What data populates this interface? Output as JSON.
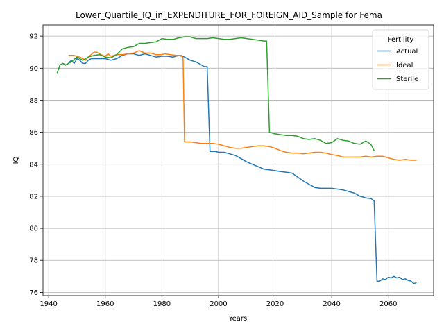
{
  "chart_data": {
    "type": "line",
    "title": "Lower_Quartile_IQ_in_EXPENDITURE_FOR_FOREIGN_AID_Sample for Fema",
    "xlabel": "Years",
    "ylabel": "IQ",
    "xlim": [
      1938,
      2076
    ],
    "ylim": [
      75.8,
      92.7
    ],
    "xticks": [
      1940,
      1960,
      1980,
      2000,
      2020,
      2040,
      2060
    ],
    "yticks": [
      76,
      78,
      80,
      82,
      84,
      86,
      88,
      90,
      92
    ],
    "grid": true,
    "legend": {
      "title": "Fertility",
      "position": "top-right"
    },
    "series": [
      {
        "name": "Actual",
        "color": "#1f77b4",
        "x": [
          1943,
          1944,
          1945,
          1946,
          1947,
          1948,
          1949,
          1950,
          1951,
          1952,
          1953,
          1954,
          1955,
          1956,
          1958,
          1960,
          1962,
          1964,
          1966,
          1968,
          1970,
          1972,
          1974,
          1976,
          1978,
          1980,
          1982,
          1984,
          1986,
          1988,
          1990,
          1992,
          1994,
          1995,
          1996,
          1997,
          1999,
          2000,
          2002,
          2004,
          2006,
          2008,
          2010,
          2012,
          2014,
          2016,
          2018,
          2020,
          2022,
          2024,
          2026,
          2028,
          2030,
          2032,
          2034,
          2036,
          2038,
          2040,
          2042,
          2044,
          2046,
          2048,
          2050,
          2052,
          2054,
          2055,
          2056,
          2057,
          2058,
          2059,
          2060,
          2061,
          2062,
          2063,
          2064,
          2065,
          2066,
          2067,
          2068,
          2069,
          2070
        ],
        "y": [
          89.7,
          90.2,
          90.3,
          90.2,
          90.3,
          90.5,
          90.3,
          90.6,
          90.5,
          90.3,
          90.3,
          90.5,
          90.6,
          90.6,
          90.6,
          90.6,
          90.5,
          90.6,
          90.8,
          90.9,
          90.9,
          90.8,
          90.9,
          90.8,
          90.7,
          90.75,
          90.75,
          90.7,
          90.8,
          90.7,
          90.5,
          90.4,
          90.2,
          90.1,
          90.1,
          84.8,
          84.8,
          84.75,
          84.75,
          84.65,
          84.55,
          84.35,
          84.15,
          84.0,
          83.85,
          83.7,
          83.65,
          83.6,
          83.55,
          83.5,
          83.45,
          83.2,
          82.95,
          82.75,
          82.55,
          82.5,
          82.5,
          82.5,
          82.45,
          82.4,
          82.3,
          82.2,
          82.0,
          81.9,
          81.85,
          81.7,
          76.7,
          76.7,
          76.85,
          76.8,
          76.95,
          76.9,
          77.0,
          76.9,
          76.95,
          76.8,
          76.85,
          76.75,
          76.7,
          76.55,
          76.6
        ]
      },
      {
        "name": "Ideal",
        "color": "#ff7f0e",
        "x": [
          1947,
          1949,
          1951,
          1953,
          1954,
          1956,
          1957,
          1959,
          1960,
          1961,
          1962,
          1964,
          1966,
          1968,
          1970,
          1972,
          1974,
          1976,
          1978,
          1980,
          1981,
          1983,
          1985,
          1987,
          1987.5,
          1988,
          1990,
          1992,
          1994,
          1996,
          1998,
          2000,
          2002,
          2004,
          2006,
          2008,
          2010,
          2012,
          2014,
          2016,
          2018,
          2020,
          2022,
          2024,
          2026,
          2028,
          2030,
          2032,
          2034,
          2036,
          2038,
          2040,
          2042,
          2044,
          2046,
          2048,
          2050,
          2052,
          2054,
          2056,
          2058,
          2060,
          2062,
          2064,
          2066,
          2068,
          2070
        ],
        "y": [
          90.8,
          90.8,
          90.7,
          90.5,
          90.7,
          91.0,
          91.0,
          90.8,
          90.75,
          90.9,
          90.75,
          90.85,
          90.85,
          90.9,
          90.95,
          91.1,
          90.95,
          90.95,
          90.85,
          90.85,
          90.9,
          90.85,
          90.8,
          90.8,
          90.6,
          85.4,
          85.4,
          85.35,
          85.3,
          85.3,
          85.3,
          85.25,
          85.15,
          85.05,
          85.0,
          85.0,
          85.05,
          85.1,
          85.15,
          85.15,
          85.1,
          85.0,
          84.85,
          84.75,
          84.7,
          84.7,
          84.65,
          84.7,
          84.75,
          84.75,
          84.7,
          84.6,
          84.55,
          84.45,
          84.45,
          84.45,
          84.45,
          84.5,
          84.45,
          84.5,
          84.5,
          84.4,
          84.3,
          84.25,
          84.3,
          84.25,
          84.25
        ]
      },
      {
        "name": "Sterile",
        "color": "#2ca02c",
        "x": [
          1943,
          1944,
          1945,
          1946,
          1948,
          1950,
          1951,
          1952,
          1953,
          1954,
          1956,
          1958,
          1960,
          1962,
          1964,
          1966,
          1968,
          1970,
          1972,
          1974,
          1976,
          1978,
          1980,
          1982,
          1984,
          1986,
          1988,
          1990,
          1992,
          1994,
          1996,
          1998,
          2000,
          2002,
          2004,
          2006,
          2008,
          2010,
          2012,
          2014,
          2016,
          2017,
          2018,
          2020,
          2022,
          2024,
          2026,
          2028,
          2030,
          2032,
          2034,
          2036,
          2038,
          2040,
          2042,
          2044,
          2046,
          2048,
          2050,
          2052,
          2053,
          2054,
          2055
        ],
        "y": [
          89.7,
          90.2,
          90.3,
          90.2,
          90.4,
          90.7,
          90.6,
          90.5,
          90.6,
          90.7,
          90.8,
          90.85,
          90.7,
          90.65,
          90.85,
          91.2,
          91.3,
          91.35,
          91.55,
          91.55,
          91.6,
          91.65,
          91.85,
          91.8,
          91.8,
          91.9,
          91.95,
          91.95,
          91.85,
          91.85,
          91.85,
          91.9,
          91.85,
          91.8,
          91.8,
          91.85,
          91.9,
          91.85,
          91.8,
          91.75,
          91.7,
          91.7,
          86.0,
          85.9,
          85.85,
          85.8,
          85.8,
          85.75,
          85.6,
          85.55,
          85.6,
          85.5,
          85.3,
          85.35,
          85.6,
          85.5,
          85.45,
          85.3,
          85.25,
          85.45,
          85.35,
          85.2,
          84.85
        ]
      }
    ]
  }
}
